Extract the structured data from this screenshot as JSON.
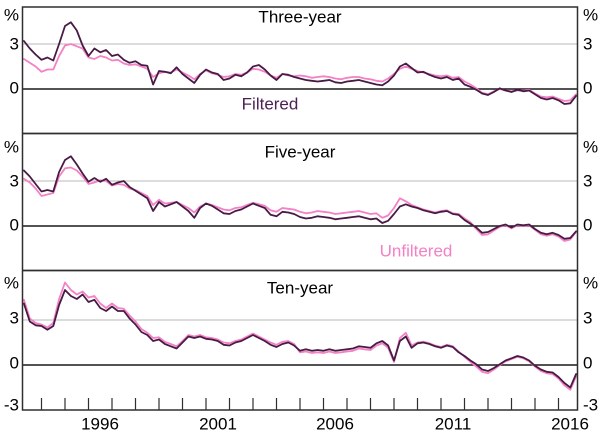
{
  "chart_data": {
    "type": "line",
    "description": "Break-even inflation expectations, filtered vs unfiltered, three horizons",
    "x_start": 1993.25,
    "x_step": 0.25,
    "x_axis": {
      "labels": [
        "1996",
        "2001",
        "2006",
        "2011",
        "2016"
      ],
      "label_years": [
        1996.5,
        2001.5,
        2006.5,
        2011.5,
        2016.5
      ],
      "tick_first_year": 1994,
      "tick_last_year": 2016,
      "tick_interval_years": 1
    },
    "y_axis": {
      "percent": "%",
      "three": "3",
      "zero": "0",
      "minus_three": "-3",
      "gridline_value": 3,
      "zero_value": 0,
      "min": -3
    },
    "legend": {
      "filtered_label": "Filtered",
      "unfiltered_label": "Unfiltered"
    },
    "colors": {
      "filtered": "#471b44",
      "unfiltered": "#f480c5",
      "axis": "#2f2f2f",
      "zero_line": "#1a1a1a",
      "gridline": "#b9b9b9",
      "background": "#ffffff"
    },
    "panels": [
      {
        "title": "Three-year",
        "filtered": [
          3.2,
          2.7,
          2.3,
          1.95,
          2.1,
          1.9,
          3.0,
          4.2,
          4.45,
          3.9,
          2.9,
          2.2,
          2.7,
          2.45,
          2.6,
          2.2,
          2.3,
          1.95,
          1.75,
          1.85,
          1.6,
          1.55,
          0.3,
          1.2,
          1.15,
          1.05,
          1.45,
          1.0,
          0.7,
          0.4,
          0.95,
          1.3,
          1.1,
          1.0,
          0.6,
          0.7,
          0.95,
          0.85,
          1.1,
          1.5,
          1.6,
          1.3,
          0.9,
          0.6,
          1.0,
          0.95,
          0.8,
          0.7,
          0.6,
          0.55,
          0.5,
          0.55,
          0.6,
          0.45,
          0.4,
          0.5,
          0.55,
          0.6,
          0.5,
          0.4,
          0.3,
          0.25,
          0.5,
          0.9,
          1.5,
          1.7,
          1.4,
          1.1,
          1.15,
          0.95,
          0.8,
          0.7,
          0.8,
          0.6,
          0.7,
          0.3,
          0.15,
          -0.05,
          -0.3,
          -0.4,
          -0.2,
          0.05,
          -0.1,
          -0.2,
          -0.05,
          -0.15,
          -0.1,
          -0.35,
          -0.6,
          -0.7,
          -0.6,
          -0.75,
          -1.0,
          -0.95,
          -0.45
        ],
        "unfiltered": [
          2.0,
          1.75,
          1.5,
          1.15,
          1.3,
          1.3,
          2.2,
          2.9,
          3.0,
          2.85,
          2.7,
          2.1,
          2.0,
          2.2,
          2.1,
          1.9,
          1.95,
          1.7,
          1.6,
          1.65,
          1.5,
          1.35,
          0.8,
          1.05,
          1.15,
          1.1,
          1.3,
          1.1,
          0.9,
          0.65,
          1.0,
          1.25,
          1.05,
          0.95,
          0.8,
          0.85,
          1.0,
          0.95,
          1.1,
          1.35,
          1.3,
          1.15,
          0.9,
          0.75,
          1.0,
          0.9,
          0.85,
          0.9,
          0.85,
          0.75,
          0.8,
          0.85,
          0.8,
          0.7,
          0.65,
          0.75,
          0.8,
          0.8,
          0.7,
          0.65,
          0.55,
          0.5,
          0.7,
          1.0,
          1.35,
          1.5,
          1.35,
          1.2,
          1.1,
          1.0,
          0.9,
          0.85,
          0.9,
          0.75,
          0.8,
          0.5,
          0.3,
          0.05,
          -0.25,
          -0.35,
          -0.15,
          0.0,
          -0.1,
          -0.15,
          -0.1,
          -0.1,
          -0.05,
          -0.3,
          -0.5,
          -0.55,
          -0.5,
          -0.65,
          -0.8,
          -0.75,
          -0.35
        ]
      },
      {
        "title": "Five-year",
        "filtered": [
          3.7,
          3.3,
          2.8,
          2.3,
          2.4,
          2.3,
          3.6,
          4.4,
          4.65,
          4.1,
          3.5,
          2.95,
          3.2,
          2.95,
          3.15,
          2.75,
          2.9,
          3.0,
          2.6,
          2.35,
          2.1,
          1.85,
          1.0,
          1.6,
          1.3,
          1.45,
          1.6,
          1.3,
          1.0,
          0.55,
          1.2,
          1.5,
          1.35,
          1.1,
          0.85,
          0.8,
          1.0,
          1.1,
          1.3,
          1.5,
          1.35,
          1.2,
          0.75,
          0.65,
          0.95,
          0.9,
          0.8,
          0.6,
          0.5,
          0.55,
          0.65,
          0.6,
          0.55,
          0.45,
          0.5,
          0.55,
          0.6,
          0.65,
          0.55,
          0.45,
          0.5,
          0.2,
          0.35,
          0.8,
          1.3,
          1.45,
          1.3,
          1.2,
          1.05,
          0.95,
          0.85,
          0.95,
          1.0,
          0.8,
          0.75,
          0.4,
          0.15,
          -0.1,
          -0.45,
          -0.4,
          -0.2,
          0.0,
          0.1,
          -0.1,
          0.1,
          0.05,
          0.1,
          -0.2,
          -0.45,
          -0.55,
          -0.45,
          -0.6,
          -0.85,
          -0.8,
          -0.35
        ],
        "unfiltered": [
          3.15,
          2.9,
          2.5,
          2.0,
          2.1,
          2.2,
          3.3,
          3.85,
          3.9,
          3.7,
          3.3,
          2.8,
          2.9,
          3.05,
          3.0,
          2.7,
          2.8,
          2.75,
          2.5,
          2.4,
          2.2,
          2.0,
          1.4,
          1.75,
          1.5,
          1.55,
          1.6,
          1.4,
          1.2,
          0.9,
          1.3,
          1.5,
          1.4,
          1.25,
          1.1,
          1.05,
          1.2,
          1.25,
          1.4,
          1.55,
          1.45,
          1.35,
          1.05,
          0.95,
          1.2,
          1.15,
          1.1,
          0.95,
          0.85,
          0.9,
          1.0,
          0.95,
          0.9,
          0.8,
          0.85,
          0.9,
          0.95,
          1.0,
          0.9,
          0.8,
          0.85,
          0.55,
          0.7,
          1.2,
          1.85,
          1.65,
          1.4,
          1.25,
          1.1,
          1.0,
          0.9,
          1.0,
          1.05,
          0.85,
          0.8,
          0.5,
          0.25,
          -0.2,
          -0.6,
          -0.55,
          -0.3,
          -0.05,
          0.05,
          -0.15,
          0.05,
          0.0,
          0.05,
          -0.25,
          -0.55,
          -0.65,
          -0.55,
          -0.7,
          -1.0,
          -0.9,
          -0.4
        ]
      },
      {
        "title": "Ten-year",
        "filtered": [
          4.1,
          2.9,
          2.65,
          2.6,
          2.35,
          2.6,
          4.0,
          5.0,
          4.6,
          4.4,
          4.7,
          4.2,
          4.35,
          3.8,
          3.6,
          3.9,
          3.6,
          3.6,
          3.1,
          2.7,
          2.2,
          2.0,
          1.6,
          1.7,
          1.4,
          1.25,
          1.1,
          1.5,
          1.9,
          1.8,
          1.9,
          1.75,
          1.7,
          1.6,
          1.35,
          1.3,
          1.5,
          1.6,
          1.8,
          2.0,
          1.8,
          1.6,
          1.35,
          1.2,
          1.4,
          1.5,
          1.3,
          0.95,
          1.05,
          0.95,
          1.0,
          0.95,
          1.05,
          0.95,
          1.0,
          1.05,
          1.1,
          1.25,
          1.2,
          1.15,
          1.45,
          1.6,
          1.3,
          0.3,
          1.6,
          1.9,
          1.15,
          1.45,
          1.5,
          1.4,
          1.25,
          1.15,
          1.3,
          1.2,
          0.85,
          0.6,
          0.3,
          0.05,
          -0.3,
          -0.4,
          -0.2,
          0.05,
          0.3,
          0.45,
          0.6,
          0.5,
          0.3,
          -0.05,
          -0.3,
          -0.45,
          -0.5,
          -0.8,
          -1.2,
          -1.5,
          -0.6
        ],
        "unfiltered": [
          4.35,
          3.1,
          2.8,
          2.7,
          2.5,
          2.8,
          4.4,
          5.5,
          5.0,
          4.7,
          4.9,
          4.5,
          4.6,
          4.1,
          3.8,
          4.1,
          3.8,
          3.75,
          3.3,
          2.9,
          2.4,
          2.15,
          1.8,
          1.85,
          1.55,
          1.4,
          1.25,
          1.6,
          2.0,
          1.9,
          2.0,
          1.85,
          1.8,
          1.7,
          1.5,
          1.45,
          1.6,
          1.7,
          1.9,
          2.1,
          1.9,
          1.7,
          1.5,
          1.35,
          1.55,
          1.6,
          1.4,
          0.85,
          0.9,
          0.8,
          0.85,
          0.8,
          0.9,
          0.8,
          0.85,
          0.9,
          0.95,
          1.1,
          1.05,
          1.0,
          1.3,
          1.45,
          1.15,
          0.2,
          1.8,
          2.15,
          1.3,
          1.5,
          1.55,
          1.45,
          1.3,
          1.2,
          1.35,
          1.25,
          0.9,
          0.55,
          0.2,
          -0.1,
          -0.45,
          -0.55,
          -0.3,
          0.0,
          0.25,
          0.4,
          0.55,
          0.45,
          0.25,
          -0.1,
          -0.4,
          -0.55,
          -0.6,
          -0.9,
          -1.35,
          -1.65,
          -0.75
        ]
      }
    ]
  }
}
